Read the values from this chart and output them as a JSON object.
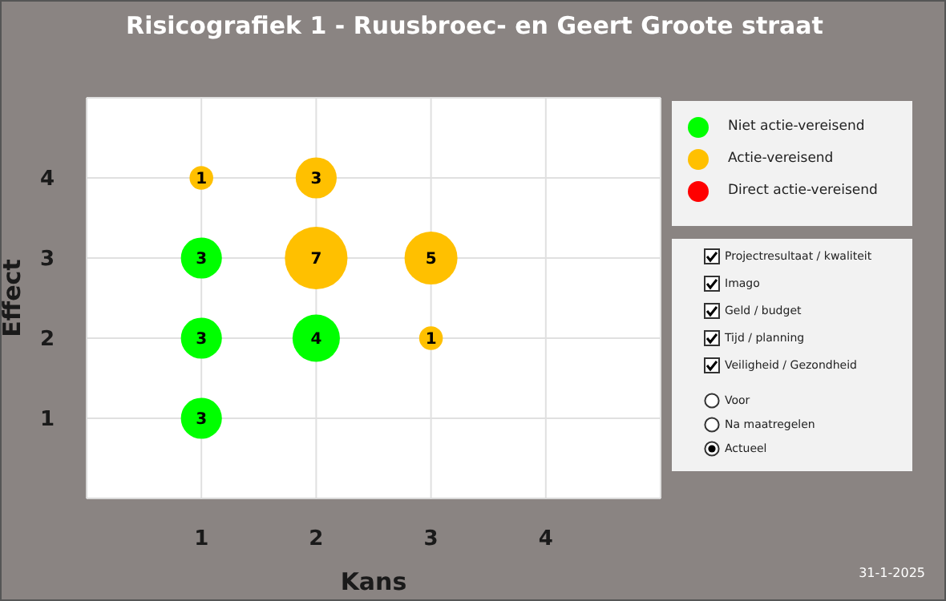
{
  "chart_data": {
    "type": "bubble",
    "title": "Risicografiek 1 - Ruusbroec- en Geert Groote straat",
    "xlabel": "Kans",
    "ylabel": "Effect",
    "xlim": [
      0,
      5
    ],
    "ylim": [
      0,
      5
    ],
    "xticks": [
      1,
      2,
      3,
      4
    ],
    "yticks": [
      1,
      2,
      3,
      4
    ],
    "grid": true,
    "legend": "top right",
    "series": [
      {
        "name": "Niet actie-vereisend",
        "color": "#00ff00",
        "x": [
          1,
          1,
          1,
          2
        ],
        "values": [
          3,
          2,
          1,
          2
        ],
        "sizes": [
          3,
          3,
          3,
          4
        ],
        "value_labels": [
          "3",
          "3",
          "3",
          "4"
        ]
      },
      {
        "name": "Actie-vereisend",
        "color": "#ffc000",
        "x": [
          1,
          2,
          2,
          3,
          3
        ],
        "values": [
          4,
          4,
          3,
          3,
          2
        ],
        "sizes": [
          1,
          3,
          7,
          5,
          1
        ],
        "value_labels": [
          "1",
          "3",
          "7",
          "5",
          "1"
        ]
      },
      {
        "name": "Direct actie-vereisend",
        "color": "#ff0000"
      }
    ],
    "annotations": [
      "Projectresultaat / kwaliteit",
      "Imago",
      "Geld / budget",
      "Tijd / planning",
      "Veiligheid / Gezondheid",
      "Voor",
      "Na maatregelen",
      "Actueel",
      "31-1-2025"
    ]
  }
}
